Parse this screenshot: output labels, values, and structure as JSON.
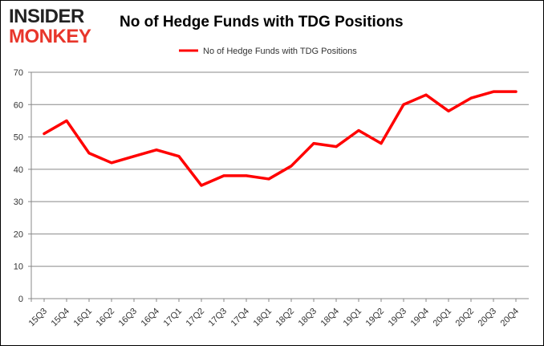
{
  "logo": {
    "line1": "INSIDER",
    "line2": "MONKEY"
  },
  "chart_data": {
    "type": "line",
    "title": "No of Hedge Funds with TDG Positions",
    "categories": [
      "15Q3",
      "15Q4",
      "16Q1",
      "16Q2",
      "16Q3",
      "16Q4",
      "17Q1",
      "17Q2",
      "17Q3",
      "17Q4",
      "18Q1",
      "18Q2",
      "18Q3",
      "18Q4",
      "19Q1",
      "19Q2",
      "19Q3",
      "19Q4",
      "20Q1",
      "20Q2",
      "20Q3",
      "20Q4"
    ],
    "series": [
      {
        "name": "No of Hedge Funds with TDG Positions",
        "color": "#ff0000",
        "values": [
          51,
          55,
          45,
          42,
          44,
          46,
          44,
          35,
          38,
          38,
          37,
          41,
          48,
          47,
          52,
          48,
          60,
          63,
          58,
          62,
          64,
          64
        ]
      }
    ],
    "ylim": [
      0,
      70
    ],
    "yticks": [
      0,
      10,
      20,
      30,
      40,
      50,
      60,
      70
    ],
    "grid": true,
    "legend": "top"
  }
}
